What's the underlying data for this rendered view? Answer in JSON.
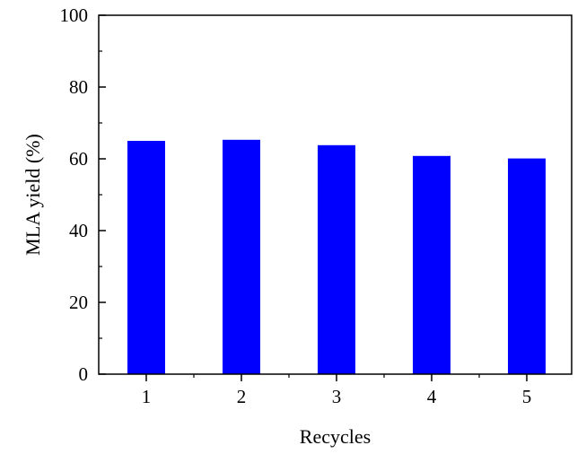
{
  "chart_data": {
    "type": "bar",
    "categories": [
      "1",
      "2",
      "3",
      "4",
      "5"
    ],
    "values": [
      65,
      65.3,
      63.8,
      60.8,
      60.1
    ],
    "title": "",
    "xlabel": "Recycles",
    "ylabel": "MLA yield (%)",
    "ylim": [
      0,
      100
    ],
    "yticks": [
      "0",
      "20",
      "40",
      "60",
      "80",
      "100"
    ],
    "grid": false,
    "bar_color": "#0000ff",
    "axis_color": "#000000"
  }
}
